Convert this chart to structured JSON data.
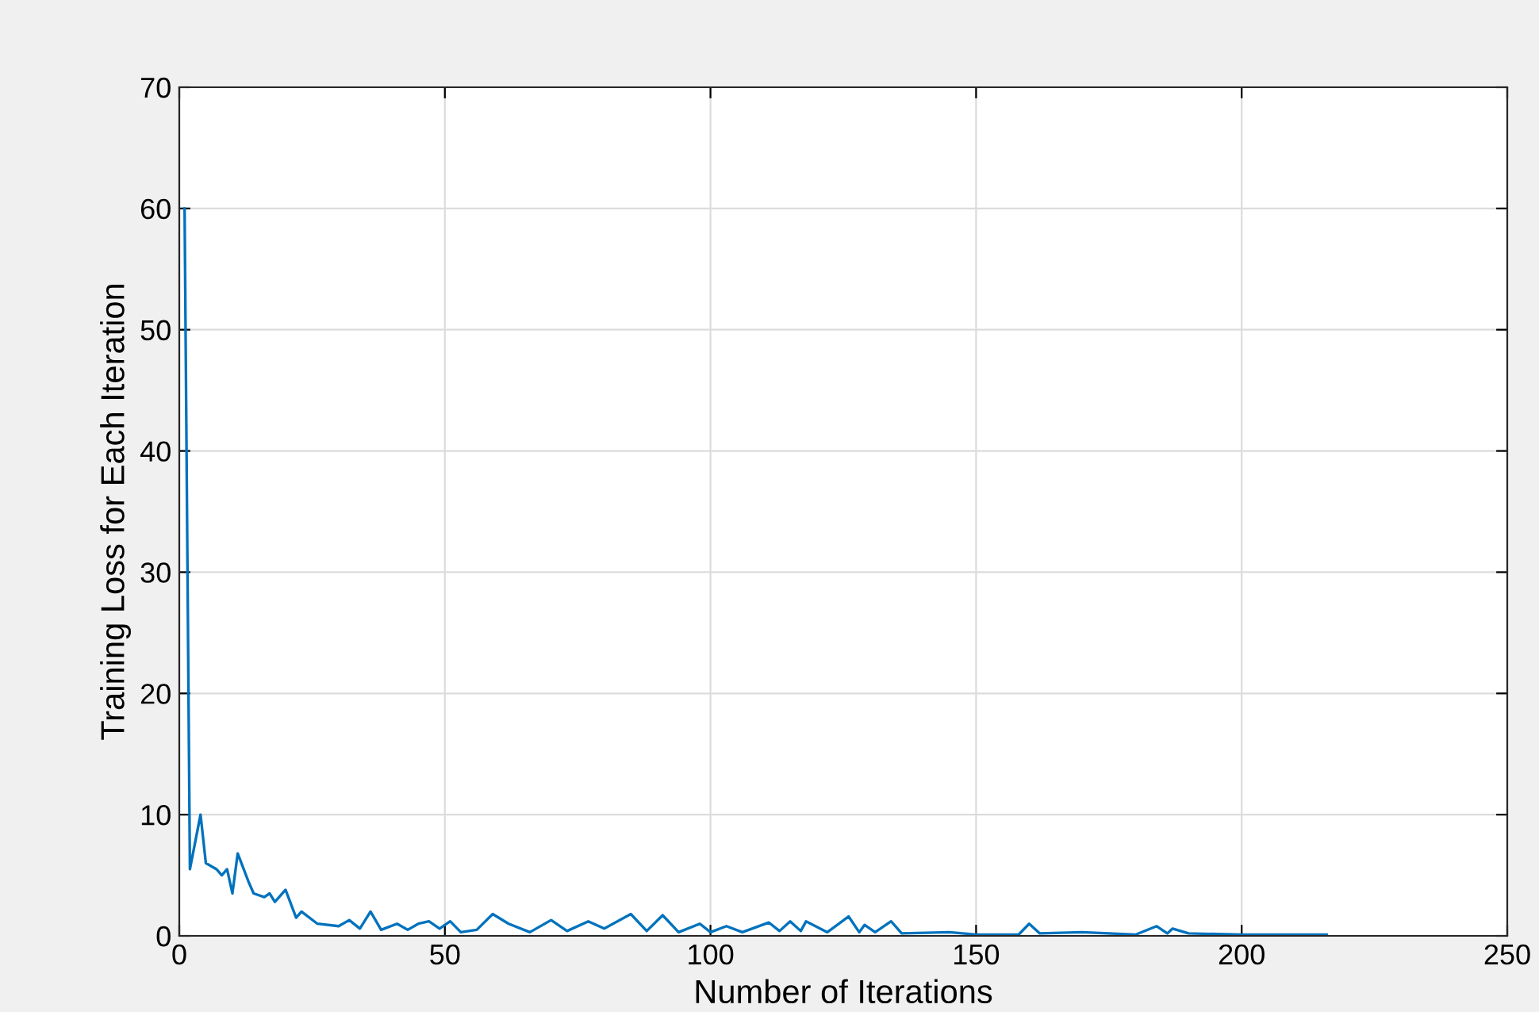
{
  "chart_data": {
    "type": "line",
    "xlabel": "Number of Iterations",
    "ylabel": "Training Loss for Each Iteration",
    "xlim": [
      0,
      250
    ],
    "ylim": [
      0,
      70
    ],
    "xticks": [
      0,
      50,
      100,
      150,
      200,
      250
    ],
    "yticks": [
      0,
      10,
      20,
      30,
      40,
      50,
      60,
      70
    ],
    "grid": true,
    "series": [
      {
        "color": "#0072bd",
        "x": [
          1,
          2,
          4,
          5,
          7,
          8,
          9,
          10,
          11,
          13,
          14,
          16,
          17,
          18,
          20,
          22,
          23,
          26,
          30,
          32,
          34,
          36,
          38,
          41,
          43,
          45,
          47,
          49,
          51,
          53,
          56,
          59,
          62,
          66,
          70,
          73,
          77,
          80,
          85,
          88,
          91,
          94,
          98,
          100,
          103,
          106,
          111,
          113,
          115,
          117,
          118,
          122,
          126,
          128,
          129,
          131,
          134,
          136,
          145,
          150,
          158,
          160,
          162,
          170,
          180,
          184,
          186,
          187,
          190,
          200,
          210,
          216
        ],
        "values": [
          60,
          5.5,
          10,
          6,
          5.5,
          5,
          5.5,
          3.5,
          6.8,
          4.5,
          3.5,
          3.2,
          3.5,
          2.8,
          3.8,
          1.5,
          2,
          1,
          0.8,
          1.3,
          0.6,
          2,
          0.5,
          1,
          0.5,
          1,
          1.2,
          0.6,
          1.2,
          0.3,
          0.5,
          1.8,
          1,
          0.3,
          1.3,
          0.4,
          1.2,
          0.6,
          1.8,
          0.4,
          1.7,
          0.3,
          1,
          0.3,
          0.8,
          0.3,
          1.1,
          0.4,
          1.2,
          0.4,
          1.2,
          0.3,
          1.6,
          0.3,
          0.9,
          0.3,
          1.2,
          0.2,
          0.3,
          0.1,
          0.1,
          1,
          0.2,
          0.3,
          0.1,
          0.8,
          0.2,
          0.6,
          0.2,
          0.1,
          0.1,
          0.1
        ]
      }
    ]
  }
}
